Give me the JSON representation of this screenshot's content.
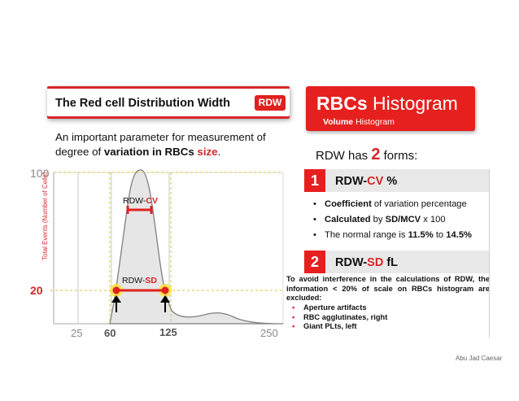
{
  "left_panel": {
    "title": "The Red cell Distribution Width",
    "badge": "RDW",
    "intro_a": "An important parameter for measurement of degree of ",
    "intro_hl": "variation in RBCs ",
    "intro_red": "size",
    "intro_end": "."
  },
  "chart_data": {
    "type": "area",
    "title": "",
    "xlabel": "",
    "ylabel": "Total Events (Number of Cells)",
    "x_ticks": [
      "25",
      "60",
      "125",
      "250"
    ],
    "y_ticks": [
      "100",
      "20"
    ],
    "annotations": {
      "cv_label": "RDW-",
      "cv_red": "CV",
      "sd_label": "RDW-",
      "sd_red": "SD"
    },
    "colors": {
      "curve_fill": "#e6e6e6",
      "curve_stroke": "#7f7f7f",
      "marker": "#e0211f",
      "highlight": "#ffe23a",
      "guide": "#d7c43c"
    }
  },
  "right_panel": {
    "header_bold": "RBCs",
    "header_rest": " Histogram",
    "sub_bold": "Volume",
    "sub_rest": " Histogram",
    "forms_pre": "RDW has ",
    "forms_num": "2",
    "forms_post": " forms:",
    "section1": {
      "num": "1",
      "label_a": "RDW-",
      "label_red": "CV",
      "label_b": " %",
      "items": [
        {
          "bold": "Coefficient",
          "rest": " of variation percentage"
        },
        {
          "bold": "Calculated",
          "rest_a": " by ",
          "bold2": "SD/MCV",
          "rest_b": " x 100"
        },
        {
          "pre": "The normal range is ",
          "bold": "11.5%",
          "mid": " to ",
          "bold2": "14.5%"
        }
      ]
    },
    "section2": {
      "num": "2",
      "label_a": "RDW-",
      "label_red": "SD",
      "label_b": " fL",
      "note": "To avoid interference in the calculations of RDW, the information < 20% of scale on RBCs histogram are excluded:",
      "items": [
        "Aperture artifacts",
        "RBC agglutinates, right",
        "Giant PLts, left"
      ]
    }
  },
  "footer": {
    "author": "Abu Jad Caesar"
  }
}
